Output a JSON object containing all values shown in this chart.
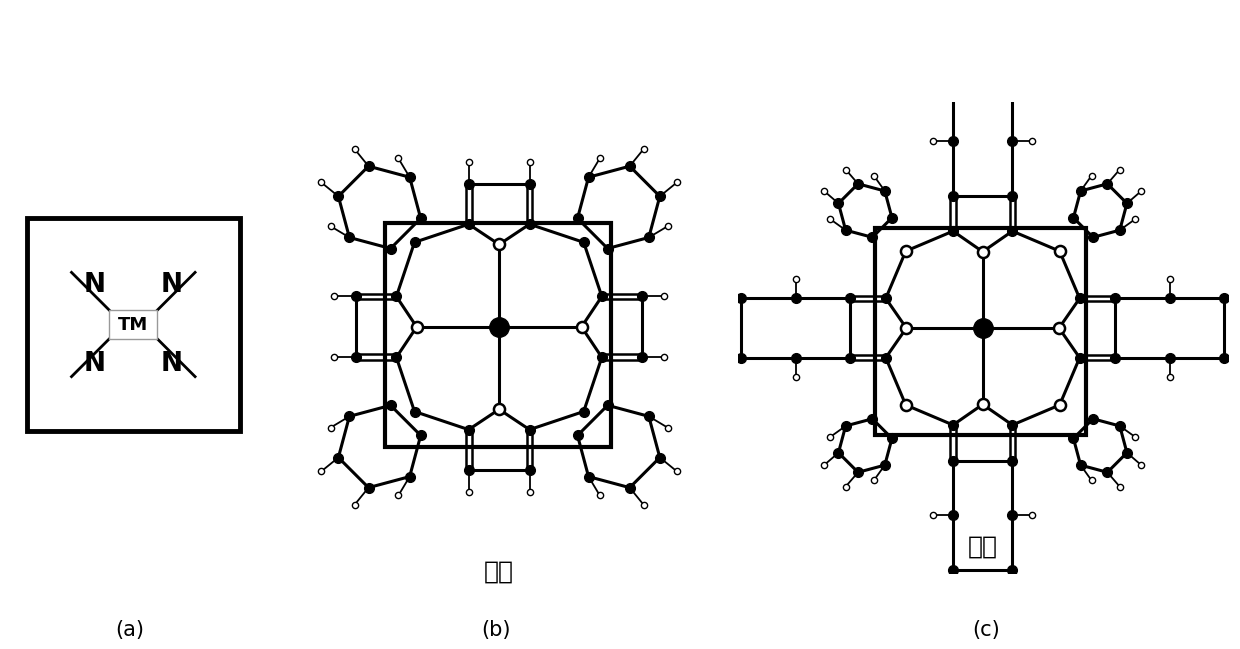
{
  "title": "",
  "panel_a_label": "(a)",
  "panel_b_label": "(b)",
  "panel_c_label": "(c)",
  "panel_b_text": "卤啊",
  "panel_c_text": "酉菁",
  "tm_label": "TM",
  "n_label": "N",
  "background_color": "#ffffff"
}
